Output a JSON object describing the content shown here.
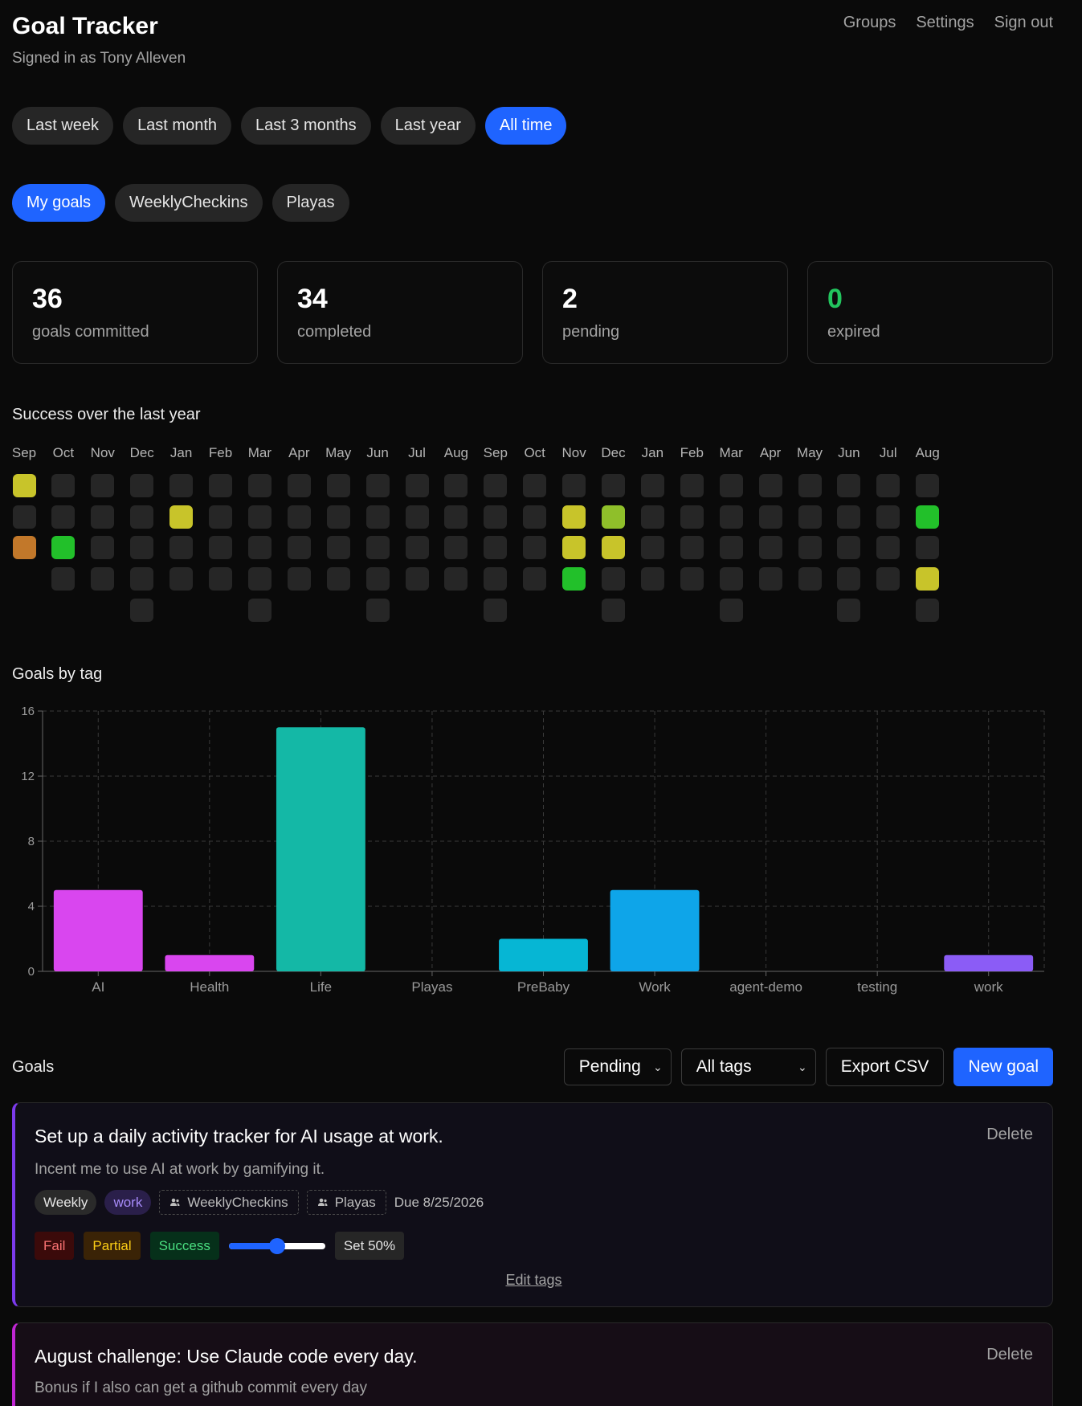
{
  "app": {
    "title": "Goal Tracker",
    "signed_in": "Signed in as Tony Alleven"
  },
  "nav": [
    "Groups",
    "Settings",
    "Sign out"
  ],
  "time_filters": {
    "items": [
      "Last week",
      "Last month",
      "Last 3 months",
      "Last year",
      "All time"
    ],
    "active": "All time"
  },
  "scope_filters": {
    "items": [
      "My goals",
      "WeeklyCheckins",
      "Playas"
    ],
    "active": "My goals"
  },
  "stats": [
    {
      "value": "36",
      "label": "goals committed",
      "color": "#ffffff"
    },
    {
      "value": "34",
      "label": "completed",
      "color": "#ffffff"
    },
    {
      "value": "2",
      "label": "pending",
      "color": "#ffffff"
    },
    {
      "value": "0",
      "label": "expired",
      "color": "#22c55e"
    }
  ],
  "heatmap": {
    "title": "Success over the last year",
    "months": [
      "Sep",
      "Oct",
      "Nov",
      "Dec",
      "Jan",
      "Feb",
      "Mar",
      "Apr",
      "May",
      "Jun",
      "Jul",
      "Aug",
      "Sep",
      "Oct",
      "Nov",
      "Dec",
      "Jan",
      "Feb",
      "Mar",
      "Apr",
      "May",
      "Jun",
      "Jul",
      "Aug"
    ],
    "colors": {
      "empty": "#262626",
      "low": "#c2782a",
      "mid": "#c8c42a",
      "midhigh": "#8fbf2a",
      "high": "#22c02a"
    },
    "columns": [
      [
        "mid",
        "empty",
        "low"
      ],
      [
        "empty",
        "empty",
        "high",
        "empty"
      ],
      [
        "empty",
        "empty",
        "empty",
        "empty"
      ],
      [
        "empty",
        "empty",
        "empty",
        "empty",
        "empty"
      ],
      [
        "empty",
        "mid",
        "empty",
        "empty"
      ],
      [
        "empty",
        "empty",
        "empty",
        "empty"
      ],
      [
        "empty",
        "empty",
        "empty",
        "empty",
        "empty"
      ],
      [
        "empty",
        "empty",
        "empty",
        "empty"
      ],
      [
        "empty",
        "empty",
        "empty",
        "empty"
      ],
      [
        "empty",
        "empty",
        "empty",
        "empty",
        "empty"
      ],
      [
        "empty",
        "empty",
        "empty",
        "empty"
      ],
      [
        "empty",
        "empty",
        "empty",
        "empty"
      ],
      [
        "empty",
        "empty",
        "empty",
        "empty",
        "empty"
      ],
      [
        "empty",
        "empty",
        "empty",
        "empty"
      ],
      [
        "empty",
        "mid",
        "mid",
        "high"
      ],
      [
        "empty",
        "midhigh",
        "mid",
        "empty",
        "empty"
      ],
      [
        "empty",
        "empty",
        "empty",
        "empty"
      ],
      [
        "empty",
        "empty",
        "empty",
        "empty"
      ],
      [
        "empty",
        "empty",
        "empty",
        "empty",
        "empty"
      ],
      [
        "empty",
        "empty",
        "empty",
        "empty"
      ],
      [
        "empty",
        "empty",
        "empty",
        "empty"
      ],
      [
        "empty",
        "empty",
        "empty",
        "empty",
        "empty"
      ],
      [
        "empty",
        "empty",
        "empty",
        "empty"
      ],
      [
        "empty",
        "high",
        "empty",
        "mid",
        "empty"
      ]
    ]
  },
  "chart_title": "Goals by tag",
  "chart_data": {
    "type": "bar",
    "title": "Goals by tag",
    "categories": [
      "AI",
      "Health",
      "Life",
      "Playas",
      "PreBaby",
      "Work",
      "agent-demo",
      "testing",
      "work"
    ],
    "values": [
      5,
      1,
      15,
      0,
      2,
      5,
      0,
      0,
      1
    ],
    "colors": [
      "#d946ef",
      "#d946ef",
      "#14b8a6",
      "#14b8a6",
      "#06b6d4",
      "#0ea5e9",
      "#3b82f6",
      "#6366f1",
      "#8b5cf6"
    ],
    "ylim": [
      0,
      16
    ],
    "yticks": [
      0,
      4,
      8,
      12,
      16
    ],
    "grid": true,
    "xlabel": "",
    "ylabel": ""
  },
  "goals_section": {
    "title": "Goals",
    "status_select": "Pending",
    "tags_select": "All tags",
    "export_label": "Export CSV",
    "new_label": "New goal"
  },
  "goals": [
    {
      "title": "Set up a daily activity tracker for AI usage at work.",
      "description": "Incent me to use AI at work by gamifying it.",
      "delete_label": "Delete",
      "cadence": "Weekly",
      "tag": "work",
      "groups": [
        "WeeklyCheckins",
        "Playas"
      ],
      "due": "Due 8/25/2026",
      "fail_label": "Fail",
      "partial_label": "Partial",
      "success_label": "Success",
      "slider_value": 0.5,
      "set_label": "Set 50%",
      "edit_tags_label": "Edit tags"
    },
    {
      "title": "August challenge: Use Claude code every day.",
      "description": "Bonus if I also can get a github commit every day",
      "delete_label": "Delete"
    }
  ]
}
